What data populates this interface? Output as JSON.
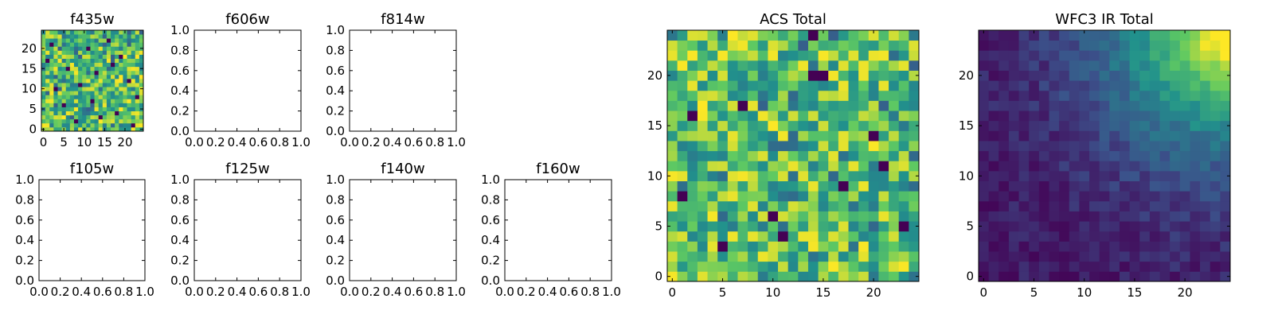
{
  "figure": {
    "colormap": "viridis",
    "colormap_stops": [
      "#440154",
      "#3b528b",
      "#21918c",
      "#5ec962",
      "#fde725"
    ]
  },
  "chart_data": [
    {
      "type": "heatmap",
      "title": "f435w",
      "x_ticks": [
        "0",
        "5",
        "10",
        "15",
        "20"
      ],
      "y_ticks": [
        "0",
        "5",
        "10",
        "15",
        "20"
      ],
      "xlim": [
        -0.5,
        24.5
      ],
      "ylim": [
        -0.5,
        24.5
      ],
      "grid_size": [
        25,
        25
      ],
      "style": "noise-bright",
      "dark_cells": [
        [
          1,
          17
        ],
        [
          3,
          10
        ],
        [
          5,
          6
        ],
        [
          8,
          2
        ],
        [
          11,
          20
        ],
        [
          13,
          14
        ],
        [
          16,
          22
        ],
        [
          18,
          4
        ],
        [
          21,
          12
        ],
        [
          23,
          8
        ],
        [
          6,
          15
        ],
        [
          14,
          3
        ],
        [
          19,
          18
        ],
        [
          2,
          21
        ],
        [
          9,
          11
        ],
        [
          22,
          1
        ],
        [
          12,
          7
        ],
        [
          17,
          16
        ]
      ],
      "grid": false
    },
    {
      "type": "empty",
      "title": "f606w",
      "x_ticks": [
        "0.0",
        "0.2",
        "0.4",
        "0.6",
        "0.8",
        "1.0"
      ],
      "y_ticks": [
        "0.0",
        "0.2",
        "0.4",
        "0.6",
        "0.8",
        "1.0"
      ],
      "xlim": [
        0,
        1
      ],
      "ylim": [
        0,
        1
      ],
      "grid": false
    },
    {
      "type": "empty",
      "title": "f814w",
      "x_ticks": [
        "0.0",
        "0.2",
        "0.4",
        "0.6",
        "0.8",
        "1.0"
      ],
      "y_ticks": [
        "0.0",
        "0.2",
        "0.4",
        "0.6",
        "0.8",
        "1.0"
      ],
      "xlim": [
        0,
        1
      ],
      "ylim": [
        0,
        1
      ],
      "grid": false
    },
    {
      "type": "empty",
      "title": "f105w",
      "x_ticks": [
        "0.0",
        "0.2",
        "0.4",
        "0.6",
        "0.8",
        "1.0"
      ],
      "y_ticks": [
        "0.0",
        "0.2",
        "0.4",
        "0.6",
        "0.8",
        "1.0"
      ],
      "xlim": [
        0,
        1
      ],
      "ylim": [
        0,
        1
      ],
      "grid": false
    },
    {
      "type": "empty",
      "title": "f125w",
      "x_ticks": [
        "0.0",
        "0.2",
        "0.4",
        "0.6",
        "0.8",
        "1.0"
      ],
      "y_ticks": [
        "0.0",
        "0.2",
        "0.4",
        "0.6",
        "0.8",
        "1.0"
      ],
      "xlim": [
        0,
        1
      ],
      "ylim": [
        0,
        1
      ],
      "grid": false
    },
    {
      "type": "empty",
      "title": "f140w",
      "x_ticks": [
        "0.0",
        "0.2",
        "0.4",
        "0.6",
        "0.8",
        "1.0"
      ],
      "y_ticks": [
        "0.0",
        "0.2",
        "0.4",
        "0.6",
        "0.8",
        "1.0"
      ],
      "xlim": [
        0,
        1
      ],
      "ylim": [
        0,
        1
      ],
      "grid": false
    },
    {
      "type": "empty",
      "title": "f160w",
      "x_ticks": [
        "0.0",
        "0.2",
        "0.4",
        "0.6",
        "0.8",
        "1.0"
      ],
      "y_ticks": [
        "0.0",
        "0.2",
        "0.4",
        "0.6",
        "0.8",
        "1.0"
      ],
      "xlim": [
        0,
        1
      ],
      "ylim": [
        0,
        1
      ],
      "grid": false
    },
    {
      "type": "heatmap",
      "title": "ACS Total",
      "x_ticks": [
        "0",
        "5",
        "10",
        "15",
        "20"
      ],
      "y_ticks": [
        "0",
        "5",
        "10",
        "15",
        "20"
      ],
      "xlim": [
        -0.5,
        24.5
      ],
      "ylim": [
        -0.5,
        24.5
      ],
      "grid_size": [
        25,
        25
      ],
      "style": "noise-bright",
      "dark_cells": [
        [
          14,
          24
        ],
        [
          7,
          17
        ],
        [
          14,
          20
        ],
        [
          15,
          20
        ],
        [
          20,
          14
        ],
        [
          21,
          11
        ],
        [
          1,
          8
        ],
        [
          10,
          6
        ],
        [
          11,
          4
        ],
        [
          23,
          5
        ],
        [
          2,
          16
        ],
        [
          5,
          3
        ],
        [
          17,
          9
        ]
      ],
      "grid": false
    },
    {
      "type": "heatmap",
      "title": "WFC3 IR Total",
      "x_ticks": [
        "0",
        "5",
        "10",
        "15",
        "20"
      ],
      "y_ticks": [
        "0",
        "5",
        "10",
        "15",
        "20"
      ],
      "xlim": [
        -0.5,
        24.5
      ],
      "ylim": [
        -0.5,
        24.5
      ],
      "grid_size": [
        25,
        25
      ],
      "style": "gradient-top-right",
      "dark_cells": [],
      "grid": false
    }
  ]
}
